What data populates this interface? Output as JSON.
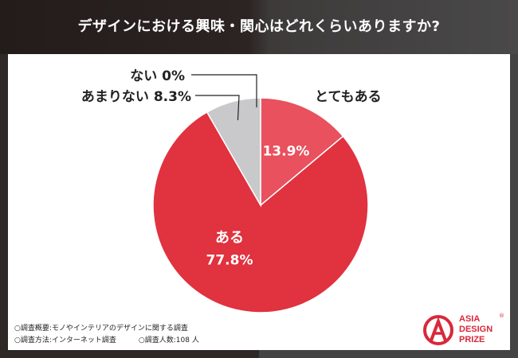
{
  "header": {
    "title": "デザインにおける興味・関心はどれくらいありますか?"
  },
  "chart_data": {
    "type": "pie",
    "slices": [
      {
        "label": "とてもある",
        "value": 13.9,
        "value_text": "13.9%",
        "color": "#e8515d"
      },
      {
        "label": "ある",
        "value": 77.8,
        "value_text": "77.8%",
        "color": "#e0323f"
      },
      {
        "label": "あまりない",
        "value": 8.3,
        "value_text": "8.3%",
        "color": "#c9c9cb"
      },
      {
        "label": "ない",
        "value": 0,
        "value_text": "0%",
        "color": "#c9c9cb"
      }
    ],
    "external_labels": {
      "none": "ない 0%",
      "not_much": "あまりない 8.3%",
      "very": "とてもある"
    }
  },
  "footnotes": {
    "line1": "○調査概要:モノやインテリアのデザインに関する調査",
    "line2_method": "○調査方法:インターネット調査",
    "line2_sample": "○調査人数:108 人"
  },
  "logo": {
    "line1": "ASIA",
    "line2": "DESIGN",
    "line3": "PRIZE",
    "reg": "®",
    "color": "#d9283a"
  }
}
